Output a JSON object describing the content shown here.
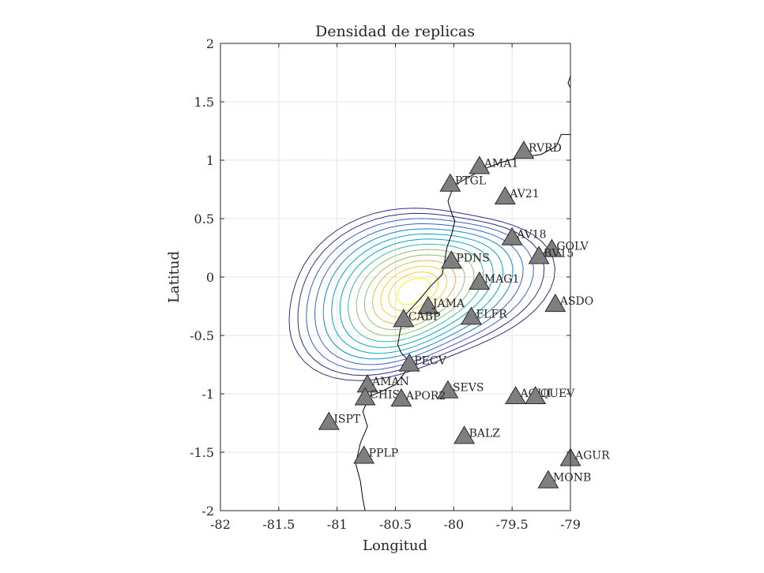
{
  "chart_data": {
    "type": "scatter",
    "title": "Densidad de replicas",
    "xlabel": "Longitud",
    "ylabel": "Latitud",
    "xlim": [
      -82,
      -79
    ],
    "ylim": [
      -2,
      2
    ],
    "xticks": [
      -82,
      -81.5,
      -81,
      -80.5,
      -80,
      -79.5,
      -79
    ],
    "xtick_labels": [
      "-82",
      "-81.5",
      "-81",
      "-80.5",
      "-80",
      "-79.5",
      "-79"
    ],
    "yticks": [
      2,
      1.5,
      1,
      0.5,
      0,
      -0.5,
      -1,
      -1.5,
      -2
    ],
    "ytick_labels": [
      "2",
      "1.5",
      "1",
      "0.5",
      "0",
      "-0.5",
      "-1",
      "-1.5",
      "-2"
    ],
    "grid": true,
    "density_peak": {
      "x": -80.35,
      "y": -0.12
    },
    "stations": [
      {
        "name": "RVRD",
        "x": -79.4,
        "y": 1.08
      },
      {
        "name": "AMA1",
        "x": -79.78,
        "y": 0.95
      },
      {
        "name": "PTGL",
        "x": -80.03,
        "y": 0.8
      },
      {
        "name": "AV21",
        "x": -79.56,
        "y": 0.69
      },
      {
        "name": "AV18",
        "x": -79.5,
        "y": 0.34
      },
      {
        "name": "GOLV",
        "x": -79.16,
        "y": 0.24
      },
      {
        "name": "BV15",
        "x": -79.27,
        "y": 0.18
      },
      {
        "name": "PDNS",
        "x": -80.02,
        "y": 0.14
      },
      {
        "name": "MAG1",
        "x": -79.78,
        "y": -0.04
      },
      {
        "name": "ASDO",
        "x": -79.13,
        "y": -0.23
      },
      {
        "name": "JAMA",
        "x": -80.22,
        "y": -0.25
      },
      {
        "name": "FLFR",
        "x": -79.85,
        "y": -0.34
      },
      {
        "name": "CABP",
        "x": -80.43,
        "y": -0.36
      },
      {
        "name": "PECV",
        "x": -80.38,
        "y": -0.74
      },
      {
        "name": "AMAN",
        "x": -80.74,
        "y": -0.92
      },
      {
        "name": "SEVS",
        "x": -80.05,
        "y": -0.97
      },
      {
        "name": "AQUI",
        "x": -79.47,
        "y": -1.02
      },
      {
        "name": "QUEV",
        "x": -79.3,
        "y": -1.02
      },
      {
        "name": "CHIS",
        "x": -80.76,
        "y": -1.03
      },
      {
        "name": "APOR2",
        "x": -80.45,
        "y": -1.04
      },
      {
        "name": "ISPT",
        "x": -81.07,
        "y": -1.24
      },
      {
        "name": "BALZ",
        "x": -79.91,
        "y": -1.36
      },
      {
        "name": "PPLP",
        "x": -80.77,
        "y": -1.53
      },
      {
        "name": "AGUR",
        "x": -79.0,
        "y": -1.55
      },
      {
        "name": "MONB",
        "x": -79.19,
        "y": -1.74
      }
    ],
    "colors": {
      "station_fill": "#7f7f7f",
      "station_edge": "#2b2b2b",
      "coastline": "#000000",
      "grid": "#e6e6e6",
      "contour_scale": [
        "#352a87",
        "#3a5fd2",
        "#1487d4",
        "#06a7c6",
        "#38b99e",
        "#92bf73",
        "#d9ba56",
        "#fcce2e",
        "#f9fb0e"
      ]
    }
  }
}
